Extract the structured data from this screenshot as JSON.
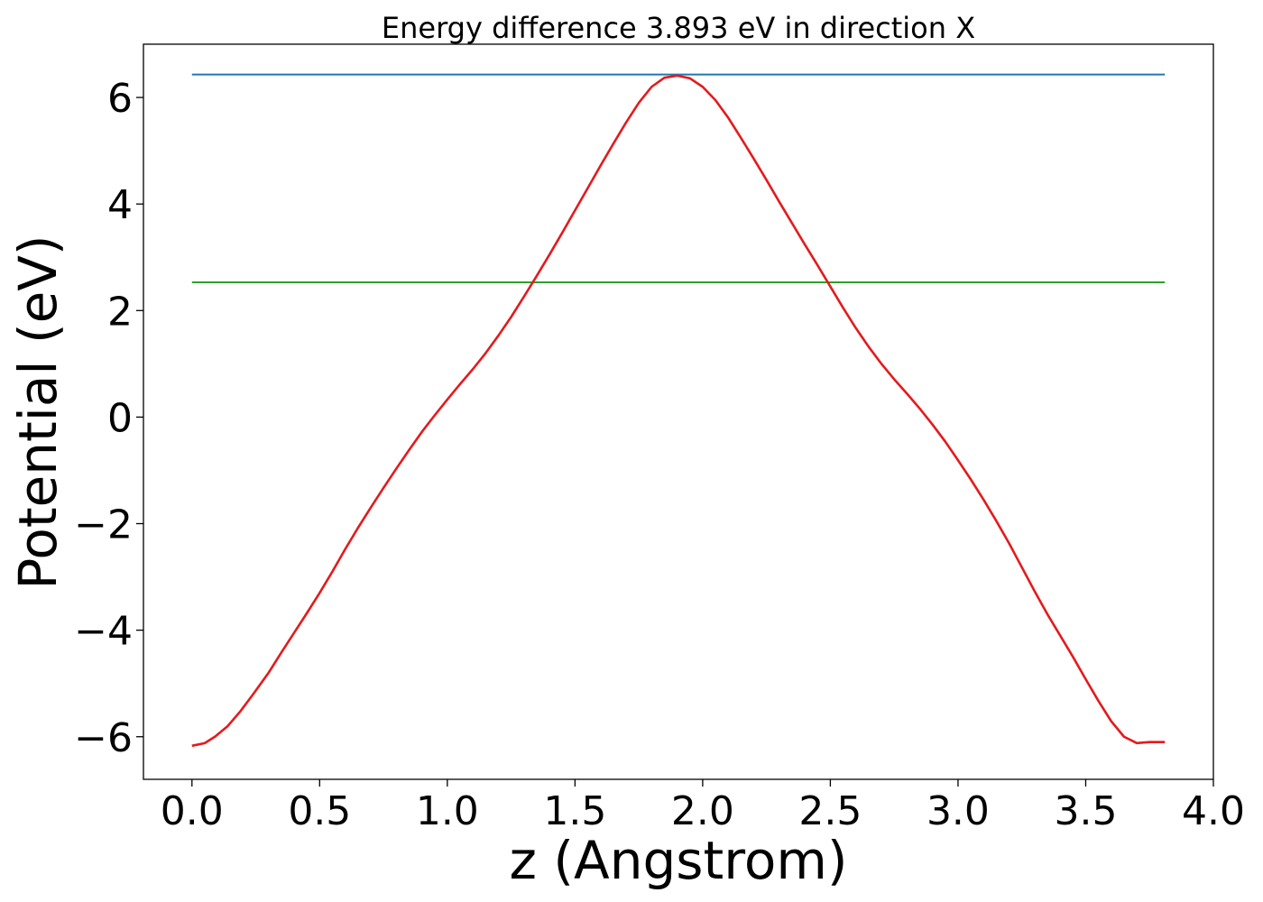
{
  "chart_data": {
    "type": "line",
    "title": "Energy difference 3.893 eV in direction X",
    "xlabel": "z (Angstrom)",
    "ylabel": "Potential (eV)",
    "xlim": [
      -0.19,
      4.0
    ],
    "ylim": [
      -6.8,
      7.0
    ],
    "xticks": [
      0.0,
      0.5,
      1.0,
      1.5,
      2.0,
      2.5,
      3.0,
      3.5,
      4.0
    ],
    "xtick_labels": [
      "0.0",
      "0.5",
      "1.0",
      "1.5",
      "2.0",
      "2.5",
      "3.0",
      "3.5",
      "4.0"
    ],
    "yticks": [
      -6,
      -4,
      -2,
      0,
      2,
      4,
      6
    ],
    "ytick_labels": [
      "−6",
      "−4",
      "−2",
      "0",
      "2",
      "4",
      "6"
    ],
    "grid": false,
    "series": [
      {
        "color": "#1f77b4",
        "x": [
          0.0,
          3.81
        ],
        "y": [
          6.43,
          6.43
        ]
      },
      {
        "color": "#2ca02c",
        "x": [
          0.0,
          3.81
        ],
        "y": [
          2.53,
          2.53
        ]
      },
      {
        "color": "#e41a1c",
        "x": [
          0.0,
          0.05,
          0.09,
          0.14,
          0.19,
          0.24,
          0.3,
          0.35,
          0.4,
          0.45,
          0.5,
          0.55,
          0.6,
          0.65,
          0.7,
          0.75,
          0.8,
          0.85,
          0.9,
          0.95,
          1.0,
          1.05,
          1.1,
          1.15,
          1.2,
          1.25,
          1.3,
          1.35,
          1.4,
          1.45,
          1.5,
          1.55,
          1.6,
          1.65,
          1.7,
          1.75,
          1.8,
          1.85,
          1.9,
          1.95,
          2.0,
          2.05,
          2.1,
          2.15,
          2.2,
          2.25,
          2.3,
          2.35,
          2.4,
          2.45,
          2.5,
          2.55,
          2.6,
          2.65,
          2.7,
          2.75,
          2.8,
          2.85,
          2.9,
          2.95,
          3.0,
          3.05,
          3.1,
          3.15,
          3.2,
          3.25,
          3.3,
          3.35,
          3.4,
          3.45,
          3.5,
          3.55,
          3.6,
          3.65,
          3.7,
          3.75,
          3.81
        ],
        "y": [
          -6.17,
          -6.12,
          -6.0,
          -5.8,
          -5.52,
          -5.2,
          -4.8,
          -4.42,
          -4.05,
          -3.68,
          -3.3,
          -2.9,
          -2.48,
          -2.08,
          -1.7,
          -1.33,
          -0.97,
          -0.62,
          -0.28,
          0.03,
          0.33,
          0.62,
          0.9,
          1.2,
          1.53,
          1.88,
          2.26,
          2.65,
          3.05,
          3.46,
          3.88,
          4.3,
          4.72,
          5.13,
          5.53,
          5.9,
          6.2,
          6.37,
          6.41,
          6.36,
          6.2,
          5.95,
          5.62,
          5.24,
          4.85,
          4.45,
          4.04,
          3.64,
          3.24,
          2.85,
          2.45,
          2.05,
          1.67,
          1.32,
          1.0,
          0.71,
          0.44,
          0.16,
          -0.14,
          -0.46,
          -0.81,
          -1.17,
          -1.55,
          -1.95,
          -2.37,
          -2.82,
          -3.27,
          -3.7,
          -4.1,
          -4.5,
          -4.92,
          -5.33,
          -5.71,
          -6.0,
          -6.12,
          -6.1,
          -6.1
        ]
      }
    ]
  }
}
